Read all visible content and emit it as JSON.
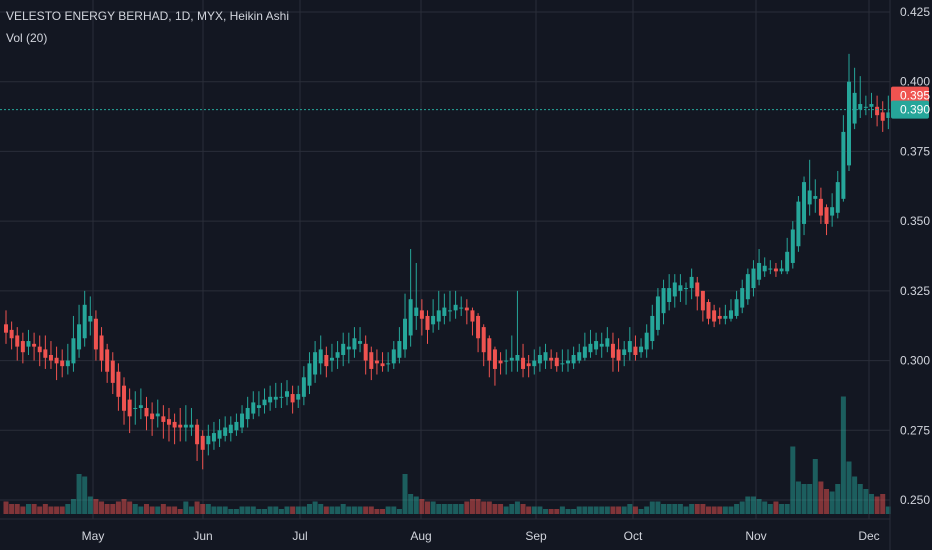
{
  "chart_data": {
    "type": "candlestick",
    "title": "VELESTO ENERGY BERHAD, 1D, MYX, Heikin Ashi",
    "indicator": "Vol (20)",
    "ylim": [
      0.245,
      0.428
    ],
    "y_ticks": [
      "0.425",
      "0.400",
      "0.375",
      "0.350",
      "0.325",
      "0.300",
      "0.275",
      "0.250"
    ],
    "x_ticks": [
      {
        "label": "May",
        "at": 0
      },
      {
        "label": "Jun",
        "at": 1
      },
      {
        "label": "Jul",
        "at": 2
      },
      {
        "label": "Aug",
        "at": 3
      },
      {
        "label": "Sep",
        "at": 4
      },
      {
        "label": "Oct",
        "at": 5
      },
      {
        "label": "Nov",
        "at": 6
      },
      {
        "label": "Dec",
        "at": 7
      }
    ],
    "price_labels": [
      {
        "value": 0.395,
        "text": "0.395",
        "color": "#ef5350"
      },
      {
        "value": 0.39,
        "text": "0.390",
        "color": "#26a69a"
      }
    ],
    "current_price": 0.39,
    "colors": {
      "up": "#26a69a",
      "down": "#ef5350",
      "background": "#131722",
      "grid": "#2a2e39",
      "text": "#d1d4dc",
      "current_line": "#26a69a"
    },
    "candles": [
      [
        0.313,
        0.31,
        0.318,
        0.306,
        5
      ],
      [
        0.311,
        0.308,
        0.314,
        0.304,
        4
      ],
      [
        0.309,
        0.305,
        0.312,
        0.3,
        4
      ],
      [
        0.307,
        0.303,
        0.31,
        0.299,
        3
      ],
      [
        0.305,
        0.307,
        0.311,
        0.302,
        4
      ],
      [
        0.306,
        0.305,
        0.31,
        0.3,
        4
      ],
      [
        0.305,
        0.303,
        0.309,
        0.298,
        3
      ],
      [
        0.304,
        0.301,
        0.309,
        0.297,
        4
      ],
      [
        0.302,
        0.3,
        0.307,
        0.297,
        3
      ],
      [
        0.301,
        0.299,
        0.305,
        0.293,
        3
      ],
      [
        0.3,
        0.298,
        0.304,
        0.294,
        3
      ],
      [
        0.298,
        0.3,
        0.306,
        0.295,
        4
      ],
      [
        0.299,
        0.308,
        0.316,
        0.296,
        6
      ],
      [
        0.304,
        0.313,
        0.32,
        0.301,
        16
      ],
      [
        0.308,
        0.32,
        0.325,
        0.305,
        15
      ],
      [
        0.314,
        0.316,
        0.323,
        0.309,
        7
      ],
      [
        0.315,
        0.304,
        0.318,
        0.3,
        6
      ],
      [
        0.309,
        0.3,
        0.312,
        0.296,
        5
      ],
      [
        0.304,
        0.296,
        0.306,
        0.292,
        4
      ],
      [
        0.3,
        0.292,
        0.303,
        0.288,
        4
      ],
      [
        0.296,
        0.287,
        0.299,
        0.282,
        5
      ],
      [
        0.291,
        0.282,
        0.294,
        0.277,
        6
      ],
      [
        0.286,
        0.28,
        0.29,
        0.274,
        5
      ],
      [
        0.283,
        0.283,
        0.289,
        0.277,
        4
      ],
      [
        0.283,
        0.284,
        0.29,
        0.279,
        3
      ],
      [
        0.283,
        0.28,
        0.287,
        0.275,
        4
      ],
      [
        0.281,
        0.279,
        0.285,
        0.273,
        3
      ],
      [
        0.28,
        0.281,
        0.286,
        0.276,
        3
      ],
      [
        0.28,
        0.278,
        0.284,
        0.272,
        4
      ],
      [
        0.279,
        0.277,
        0.283,
        0.271,
        3
      ],
      [
        0.278,
        0.276,
        0.281,
        0.27,
        3
      ],
      [
        0.277,
        0.276,
        0.283,
        0.271,
        2
      ],
      [
        0.276,
        0.277,
        0.284,
        0.271,
        5
      ],
      [
        0.276,
        0.277,
        0.283,
        0.273,
        3
      ],
      [
        0.277,
        0.27,
        0.279,
        0.264,
        5
      ],
      [
        0.273,
        0.268,
        0.275,
        0.261,
        4
      ],
      [
        0.27,
        0.273,
        0.277,
        0.266,
        4
      ],
      [
        0.271,
        0.274,
        0.278,
        0.268,
        3
      ],
      [
        0.272,
        0.275,
        0.279,
        0.269,
        3
      ],
      [
        0.273,
        0.276,
        0.28,
        0.271,
        3
      ],
      [
        0.274,
        0.277,
        0.28,
        0.271,
        2
      ],
      [
        0.275,
        0.278,
        0.281,
        0.273,
        2
      ],
      [
        0.276,
        0.281,
        0.284,
        0.274,
        3
      ],
      [
        0.279,
        0.283,
        0.287,
        0.276,
        3
      ],
      [
        0.281,
        0.285,
        0.289,
        0.279,
        3
      ],
      [
        0.283,
        0.284,
        0.289,
        0.28,
        2
      ],
      [
        0.284,
        0.286,
        0.29,
        0.281,
        2
      ],
      [
        0.285,
        0.287,
        0.291,
        0.282,
        3
      ],
      [
        0.286,
        0.287,
        0.292,
        0.283,
        3
      ],
      [
        0.287,
        0.287,
        0.292,
        0.283,
        2
      ],
      [
        0.287,
        0.289,
        0.293,
        0.284,
        3
      ],
      [
        0.288,
        0.285,
        0.291,
        0.281,
        3
      ],
      [
        0.286,
        0.288,
        0.291,
        0.283,
        3
      ],
      [
        0.287,
        0.294,
        0.298,
        0.284,
        3
      ],
      [
        0.291,
        0.299,
        0.303,
        0.288,
        4
      ],
      [
        0.295,
        0.303,
        0.307,
        0.292,
        5
      ],
      [
        0.299,
        0.304,
        0.309,
        0.295,
        4
      ],
      [
        0.302,
        0.298,
        0.305,
        0.294,
        3
      ],
      [
        0.3,
        0.301,
        0.306,
        0.296,
        3
      ],
      [
        0.301,
        0.303,
        0.307,
        0.297,
        3
      ],
      [
        0.302,
        0.306,
        0.31,
        0.298,
        4
      ],
      [
        0.304,
        0.305,
        0.31,
        0.299,
        3
      ],
      [
        0.304,
        0.308,
        0.312,
        0.301,
        3
      ],
      [
        0.306,
        0.307,
        0.312,
        0.303,
        3
      ],
      [
        0.306,
        0.3,
        0.309,
        0.295,
        3
      ],
      [
        0.303,
        0.297,
        0.305,
        0.293,
        3
      ],
      [
        0.3,
        0.299,
        0.304,
        0.295,
        2
      ],
      [
        0.299,
        0.298,
        0.303,
        0.296,
        2
      ],
      [
        0.299,
        0.299,
        0.303,
        0.296,
        3
      ],
      [
        0.299,
        0.304,
        0.307,
        0.297,
        3
      ],
      [
        0.301,
        0.307,
        0.312,
        0.299,
        2
      ],
      [
        0.304,
        0.315,
        0.324,
        0.301,
        16
      ],
      [
        0.309,
        0.322,
        0.34,
        0.305,
        8
      ],
      [
        0.316,
        0.319,
        0.335,
        0.311,
        7
      ],
      [
        0.318,
        0.315,
        0.322,
        0.309,
        6
      ],
      [
        0.316,
        0.311,
        0.318,
        0.306,
        5
      ],
      [
        0.313,
        0.316,
        0.322,
        0.31,
        5
      ],
      [
        0.314,
        0.318,
        0.325,
        0.311,
        4
      ],
      [
        0.316,
        0.319,
        0.324,
        0.313,
        4
      ],
      [
        0.318,
        0.318,
        0.325,
        0.314,
        4
      ],
      [
        0.318,
        0.32,
        0.325,
        0.315,
        4
      ],
      [
        0.319,
        0.319,
        0.323,
        0.316,
        4
      ],
      [
        0.319,
        0.318,
        0.322,
        0.313,
        5
      ],
      [
        0.318,
        0.314,
        0.319,
        0.309,
        6
      ],
      [
        0.316,
        0.308,
        0.317,
        0.303,
        6
      ],
      [
        0.312,
        0.303,
        0.313,
        0.298,
        5
      ],
      [
        0.308,
        0.3,
        0.309,
        0.294,
        5
      ],
      [
        0.304,
        0.297,
        0.305,
        0.291,
        4
      ],
      [
        0.3,
        0.299,
        0.303,
        0.295,
        4
      ],
      [
        0.3,
        0.3,
        0.304,
        0.295,
        3
      ],
      [
        0.3,
        0.301,
        0.309,
        0.296,
        4
      ],
      [
        0.3,
        0.302,
        0.325,
        0.296,
        5
      ],
      [
        0.301,
        0.297,
        0.306,
        0.294,
        4
      ],
      [
        0.299,
        0.298,
        0.302,
        0.294,
        3
      ],
      [
        0.298,
        0.3,
        0.304,
        0.295,
        3
      ],
      [
        0.299,
        0.302,
        0.305,
        0.296,
        3
      ],
      [
        0.3,
        0.303,
        0.306,
        0.297,
        2
      ],
      [
        0.301,
        0.3,
        0.304,
        0.297,
        2
      ],
      [
        0.301,
        0.298,
        0.303,
        0.296,
        2
      ],
      [
        0.299,
        0.299,
        0.304,
        0.296,
        3
      ],
      [
        0.299,
        0.3,
        0.304,
        0.296,
        2
      ],
      [
        0.299,
        0.302,
        0.305,
        0.297,
        2
      ],
      [
        0.3,
        0.303,
        0.306,
        0.299,
        3
      ],
      [
        0.301,
        0.305,
        0.31,
        0.3,
        3
      ],
      [
        0.303,
        0.306,
        0.311,
        0.301,
        3
      ],
      [
        0.304,
        0.307,
        0.31,
        0.302,
        3
      ],
      [
        0.305,
        0.306,
        0.31,
        0.301,
        3
      ],
      [
        0.305,
        0.308,
        0.312,
        0.303,
        3
      ],
      [
        0.306,
        0.301,
        0.31,
        0.296,
        3
      ],
      [
        0.304,
        0.3,
        0.308,
        0.296,
        3
      ],
      [
        0.302,
        0.304,
        0.307,
        0.298,
        3
      ],
      [
        0.303,
        0.307,
        0.312,
        0.3,
        4
      ],
      [
        0.305,
        0.302,
        0.309,
        0.3,
        3
      ],
      [
        0.303,
        0.305,
        0.308,
        0.301,
        2
      ],
      [
        0.304,
        0.31,
        0.313,
        0.301,
        3
      ],
      [
        0.307,
        0.316,
        0.32,
        0.304,
        5
      ],
      [
        0.311,
        0.323,
        0.326,
        0.309,
        5
      ],
      [
        0.317,
        0.326,
        0.329,
        0.313,
        4
      ],
      [
        0.321,
        0.326,
        0.331,
        0.318,
        4
      ],
      [
        0.323,
        0.328,
        0.331,
        0.319,
        4
      ],
      [
        0.325,
        0.327,
        0.331,
        0.321,
        4
      ],
      [
        0.326,
        0.326,
        0.328,
        0.32,
        3
      ],
      [
        0.326,
        0.33,
        0.333,
        0.322,
        4
      ],
      [
        0.328,
        0.323,
        0.33,
        0.318,
        4
      ],
      [
        0.325,
        0.318,
        0.325,
        0.314,
        4
      ],
      [
        0.321,
        0.315,
        0.322,
        0.313,
        3
      ],
      [
        0.318,
        0.314,
        0.32,
        0.312,
        3
      ],
      [
        0.316,
        0.315,
        0.319,
        0.313,
        3
      ],
      [
        0.315,
        0.316,
        0.32,
        0.313,
        3
      ],
      [
        0.315,
        0.318,
        0.322,
        0.314,
        3
      ],
      [
        0.316,
        0.322,
        0.325,
        0.315,
        4
      ],
      [
        0.319,
        0.326,
        0.329,
        0.317,
        5
      ],
      [
        0.322,
        0.331,
        0.333,
        0.32,
        7
      ],
      [
        0.326,
        0.333,
        0.336,
        0.323,
        7
      ],
      [
        0.329,
        0.335,
        0.34,
        0.327,
        6
      ],
      [
        0.332,
        0.334,
        0.337,
        0.33,
        5
      ],
      [
        0.333,
        0.333,
        0.336,
        0.331,
        4
      ],
      [
        0.333,
        0.332,
        0.335,
        0.33,
        5
      ],
      [
        0.332,
        0.333,
        0.336,
        0.331,
        4
      ],
      [
        0.332,
        0.339,
        0.344,
        0.331,
        4
      ],
      [
        0.335,
        0.347,
        0.35,
        0.333,
        27
      ],
      [
        0.341,
        0.357,
        0.359,
        0.339,
        13
      ],
      [
        0.349,
        0.364,
        0.366,
        0.345,
        12
      ],
      [
        0.356,
        0.361,
        0.372,
        0.352,
        12
      ],
      [
        0.358,
        0.359,
        0.365,
        0.353,
        22
      ],
      [
        0.358,
        0.352,
        0.362,
        0.349,
        13
      ],
      [
        0.355,
        0.349,
        0.356,
        0.345,
        10
      ],
      [
        0.352,
        0.355,
        0.36,
        0.348,
        9
      ],
      [
        0.353,
        0.364,
        0.368,
        0.351,
        12
      ],
      [
        0.358,
        0.382,
        0.388,
        0.357,
        47
      ],
      [
        0.37,
        0.4,
        0.41,
        0.368,
        21
      ],
      [
        0.385,
        0.396,
        0.405,
        0.383,
        15
      ],
      [
        0.39,
        0.392,
        0.402,
        0.387,
        12
      ],
      [
        0.391,
        0.391,
        0.395,
        0.388,
        10
      ],
      [
        0.391,
        0.392,
        0.396,
        0.387,
        8
      ],
      [
        0.391,
        0.388,
        0.395,
        0.384,
        7
      ],
      [
        0.389,
        0.386,
        0.393,
        0.382,
        8
      ],
      [
        0.387,
        0.389,
        0.395,
        0.383,
        3
      ]
    ]
  }
}
